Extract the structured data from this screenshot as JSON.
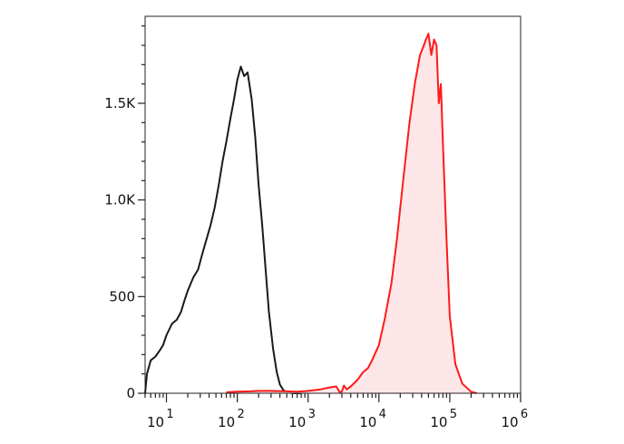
{
  "chart_data": {
    "type": "area",
    "title": "",
    "xlabel": "",
    "ylabel": "",
    "x_scale": "log",
    "xlim": [
      5,
      1000000
    ],
    "ylim": [
      0,
      1950
    ],
    "grid": false,
    "x_ticks": [
      {
        "base": "10",
        "exp": "1"
      },
      {
        "base": "10",
        "exp": "2"
      },
      {
        "base": "10",
        "exp": "3"
      },
      {
        "base": "10",
        "exp": "4"
      },
      {
        "base": "10",
        "exp": "5"
      },
      {
        "base": "10",
        "exp": "6"
      }
    ],
    "y_ticks": [
      {
        "value": 0,
        "label": "0"
      },
      {
        "value": 500,
        "label": "500"
      },
      {
        "value": 1000,
        "label": "1.0K"
      },
      {
        "value": 1500,
        "label": "1.5K"
      }
    ],
    "series": [
      {
        "color": "#1a1a1a",
        "fill": "none",
        "x": [
          5,
          5.3,
          6,
          7,
          8,
          9,
          10,
          12,
          14,
          16,
          18,
          20,
          24,
          28,
          32,
          37,
          42,
          48,
          55,
          62,
          70,
          80,
          90,
          100,
          112,
          125,
          140,
          160,
          180,
          200,
          225,
          250,
          280,
          320,
          360,
          400,
          450,
          500,
          560,
          630,
          700,
          800
        ],
        "values": [
          0,
          100,
          170,
          190,
          220,
          250,
          300,
          360,
          380,
          420,
          480,
          530,
          600,
          640,
          720,
          800,
          870,
          960,
          1080,
          1200,
          1300,
          1420,
          1520,
          1620,
          1690,
          1640,
          1660,
          1520,
          1320,
          1080,
          870,
          650,
          420,
          230,
          110,
          45,
          15,
          5,
          2,
          0,
          0,
          0
        ]
      },
      {
        "color": "#ff1a1a",
        "fill": "#fde6e8",
        "x": [
          70,
          100,
          150,
          200,
          300,
          500,
          700,
          1000,
          1500,
          2000,
          2500,
          2800,
          3000,
          3200,
          3500,
          4000,
          5000,
          6000,
          7000,
          8000,
          10000,
          12000,
          15000,
          18000,
          22000,
          27000,
          32000,
          38000,
          43000,
          46000,
          50000,
          55000,
          60000,
          65000,
          70000,
          75000,
          80000,
          90000,
          100000,
          120000,
          150000,
          200000,
          240000
        ],
        "values": [
          5,
          8,
          10,
          12,
          12,
          10,
          8,
          12,
          20,
          30,
          35,
          5,
          10,
          40,
          20,
          35,
          70,
          110,
          130,
          170,
          250,
          380,
          570,
          800,
          1100,
          1400,
          1600,
          1750,
          1800,
          1830,
          1860,
          1750,
          1830,
          1800,
          1500,
          1600,
          1300,
          800,
          400,
          150,
          50,
          8,
          0
        ]
      }
    ]
  }
}
